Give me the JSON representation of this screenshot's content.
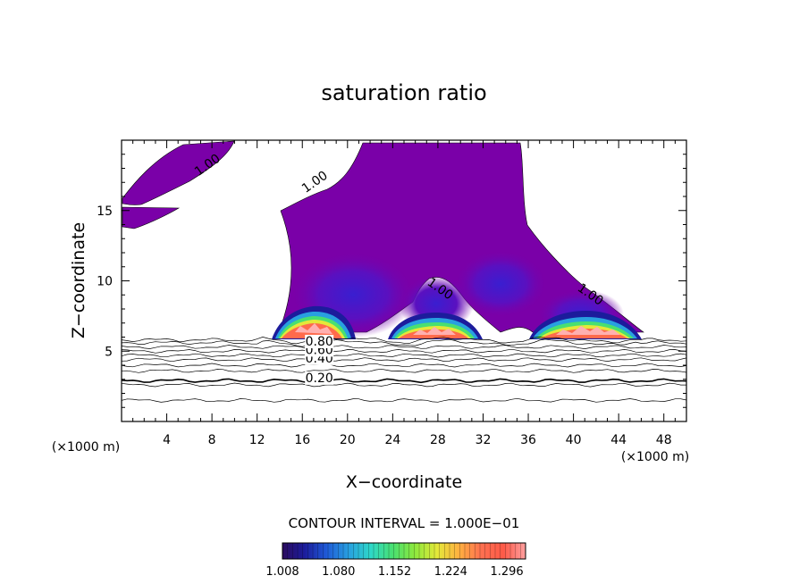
{
  "chart_data": {
    "type": "contour",
    "title": "saturation ratio",
    "xlabel": "X−coordinate",
    "ylabel": "Z−coordinate",
    "x_unit": "(×1000 m)",
    "y_unit": "(×1000 m)",
    "xlim": [
      0,
      50
    ],
    "ylim": [
      0,
      20
    ],
    "x_ticks": [
      4,
      8,
      12,
      16,
      20,
      24,
      28,
      32,
      36,
      40,
      44,
      48
    ],
    "y_ticks": [
      5,
      10,
      15
    ],
    "contour_interval": "CONTOUR INTERVAL = 1.000E−01",
    "line_levels": [
      0.2,
      0.4,
      0.6,
      0.8,
      1.0
    ],
    "contour_labels": [
      {
        "text": "0.20",
        "x": 17.5,
        "z": 2.8
      },
      {
        "text": "0.40",
        "x": 17.5,
        "z": 4.2
      },
      {
        "text": "0.60",
        "x": 17.5,
        "z": 4.8
      },
      {
        "text": "0.80",
        "x": 17.5,
        "z": 5.4
      },
      {
        "text": "1.00",
        "x": 7.8,
        "z": 18.0
      },
      {
        "text": "1.00",
        "x": 17.3,
        "z": 16.8
      },
      {
        "text": "1.00",
        "x": 28.0,
        "z": 9.2
      },
      {
        "text": "1.00",
        "x": 41.3,
        "z": 8.8
      }
    ],
    "colorbar": {
      "ticks": [
        "1.008",
        "1.080",
        "1.152",
        "1.224",
        "1.296"
      ],
      "min": 1.008,
      "max": 1.32,
      "colors": [
        "#2b0b5e",
        "#1c1c9c",
        "#1f5bd8",
        "#28a0e0",
        "#2ed8c8",
        "#49e070",
        "#8ee83c",
        "#e4e83a",
        "#ffb040",
        "#ff7050",
        "#ff5a48",
        "#ffa0a0"
      ]
    },
    "cloud_color": "#7a00a8",
    "legend": "bottom-center colorbar"
  }
}
